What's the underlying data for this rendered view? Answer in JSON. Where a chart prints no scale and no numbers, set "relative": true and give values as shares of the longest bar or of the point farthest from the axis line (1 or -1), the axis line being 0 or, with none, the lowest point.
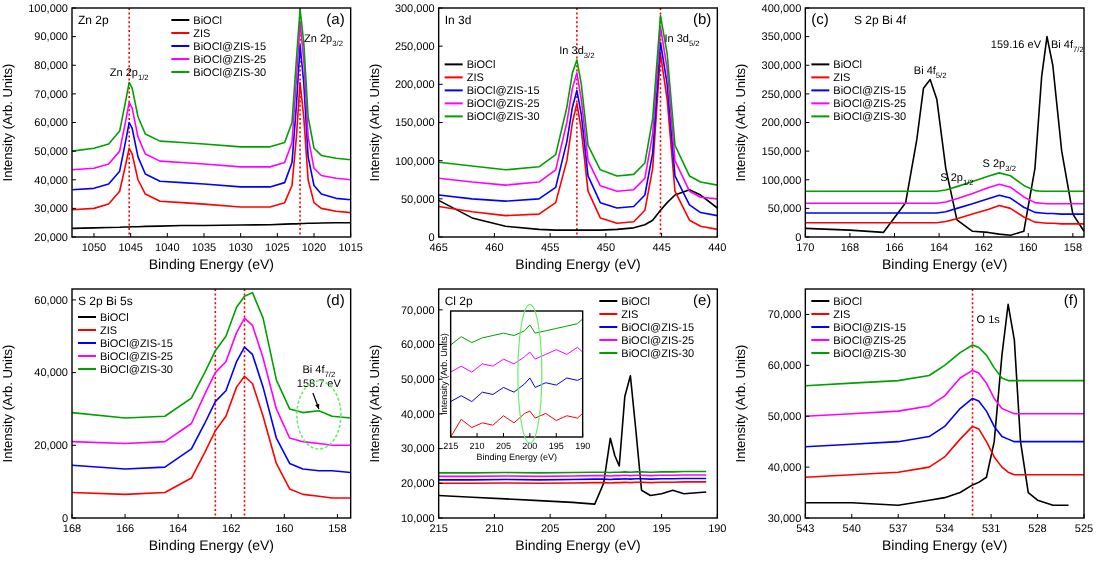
{
  "chart_data": [
    {
      "type": "line",
      "xlabel": "Binding Energy (eV)",
      "ylabel": "Intensity (Arb. Units)",
      "xlim": [
        1053,
        1015
      ],
      "xticks": [
        1050,
        1045,
        1040,
        1035,
        1030,
        1025,
        1020,
        1015
      ],
      "ylim": [
        20000,
        100000
      ],
      "yticks": [
        {
          "value": 20000,
          "label": "20,000"
        },
        {
          "value": 30000,
          "label": "30,000"
        },
        {
          "value": 40000,
          "label": "40,000"
        },
        {
          "value": 50000,
          "label": "50,000"
        },
        {
          "value": 60000,
          "label": "60,000"
        },
        {
          "value": 70000,
          "label": "70,000"
        },
        {
          "value": 80000,
          "label": "80,000"
        },
        {
          "value": 90000,
          "label": "90,000"
        },
        {
          "value": 100000,
          "label": "100,000"
        }
      ],
      "legend": "top",
      "x": [
        1053,
        1050,
        1048,
        1046.5,
        1045.8,
        1045.2,
        1044.8,
        1044,
        1043,
        1041,
        1038,
        1035,
        1030,
        1026,
        1024,
        1023,
        1022.4,
        1021.9,
        1021.4,
        1020.8,
        1020,
        1019,
        1017,
        1015
      ],
      "series": [
        {
          "name": "BiOCl",
          "color": "#000000",
          "values": [
            23000,
            23200,
            23300,
            23400,
            23500,
            23500,
            23600,
            23600,
            23700,
            23800,
            24000,
            24000,
            24200,
            24300,
            24500,
            24600,
            24600,
            24700,
            24700,
            24800,
            24800,
            24900,
            25000,
            25000
          ]
        },
        {
          "name": "ZIS",
          "color": "#ff0000",
          "values": [
            29500,
            30000,
            31500,
            36000,
            44000,
            51000,
            49000,
            40000,
            35000,
            32500,
            32000,
            31500,
            30500,
            30500,
            32000,
            38000,
            55000,
            74000,
            62000,
            40000,
            32000,
            30000,
            29000,
            28500
          ]
        },
        {
          "name": "BiOCl@ZIS-15",
          "color": "#0000ff",
          "values": [
            36500,
            37000,
            38500,
            43000,
            52000,
            60000,
            58000,
            48000,
            42000,
            39500,
            39000,
            38500,
            37500,
            37500,
            39000,
            46000,
            66000,
            87000,
            74000,
            48000,
            38000,
            35000,
            33500,
            33000
          ]
        },
        {
          "name": "BiOCl@ZIS-25",
          "color": "#ff00ff",
          "values": [
            43500,
            44000,
            45500,
            50000,
            59000,
            67000,
            65000,
            55000,
            49000,
            46500,
            46000,
            45500,
            44500,
            44500,
            46000,
            53000,
            75000,
            95000,
            82000,
            55000,
            44000,
            41500,
            40500,
            40000
          ]
        },
        {
          "name": "BiOCl@ZIS-30",
          "color": "#00a000",
          "values": [
            50000,
            51000,
            52500,
            57000,
            66000,
            74000,
            72000,
            62000,
            56000,
            53500,
            53000,
            52500,
            51500,
            51500,
            53000,
            60000,
            82000,
            99500,
            88000,
            62000,
            51000,
            48500,
            47500,
            47000
          ]
        }
      ],
      "ref_lines": [
        {
          "axis": "x",
          "value": 1045.2,
          "color": "#ff0000",
          "line_style": "dotted"
        },
        {
          "axis": "x",
          "value": 1021.9,
          "color": "#ff0000",
          "line_style": "dotted"
        }
      ],
      "annotations": [
        "Zn 2p",
        "(a)",
        {
          "text": "Zn 2p$_{1/2}$",
          "x": 1045.2,
          "y": 74000
        },
        {
          "text": "Zn 2p$_{3/2}$",
          "x": 1021.9,
          "y": 99500
        }
      ]
    },
    {
      "type": "line",
      "xlabel": "Binding Energy (eV)",
      "ylabel": "Intensity (Arb. Units)",
      "xlim": [
        465,
        440
      ],
      "xticks": [
        465,
        460,
        455,
        450,
        445,
        440
      ],
      "ylim": [
        0,
        300000
      ],
      "yticks": [
        {
          "value": 0,
          "label": "0"
        },
        {
          "value": 50000,
          "label": "50,000"
        },
        {
          "value": 100000,
          "label": "100,000"
        },
        {
          "value": 150000,
          "label": "150,000"
        },
        {
          "value": 200000,
          "label": "200,000"
        },
        {
          "value": 250000,
          "label": "250,000"
        },
        {
          "value": 300000,
          "label": "300,000"
        }
      ],
      "legend": "left",
      "x": [
        465,
        462,
        459,
        456,
        454.5,
        453.5,
        453,
        452.6,
        452.2,
        451.6,
        450.5,
        449,
        447.5,
        446.5,
        445.8,
        445.1,
        444.5,
        443.8,
        442.5,
        441.5,
        440
      ],
      "series": [
        {
          "name": "BiOCl",
          "color": "#000000",
          "values": [
            48000,
            25000,
            14000,
            10000,
            9000,
            9000,
            9000,
            9000,
            9000,
            9000,
            9000,
            10000,
            12000,
            16000,
            22000,
            35000,
            45000,
            55000,
            62000,
            55000,
            38000
          ]
        },
        {
          "name": "ZIS",
          "color": "#ff0000",
          "values": [
            40000,
            33000,
            28000,
            30000,
            45000,
            100000,
            150000,
            175000,
            140000,
            60000,
            25000,
            18000,
            20000,
            35000,
            90000,
            240000,
            180000,
            60000,
            22000,
            14000,
            10000
          ]
        },
        {
          "name": "BiOCl@ZIS-15",
          "color": "#0000ff",
          "values": [
            55000,
            50000,
            47000,
            50000,
            65000,
            125000,
            170000,
            192000,
            160000,
            80000,
            45000,
            38000,
            40000,
            55000,
            110000,
            255000,
            200000,
            80000,
            42000,
            32000,
            28000
          ]
        },
        {
          "name": "BiOCl@ZIS-25",
          "color": "#ff00ff",
          "values": [
            77000,
            72000,
            68000,
            72000,
            88000,
            150000,
            195000,
            215000,
            180000,
            100000,
            67000,
            60000,
            62000,
            77000,
            135000,
            275000,
            220000,
            100000,
            60000,
            52000,
            50000
          ]
        },
        {
          "name": "BiOCl@ZIS-30",
          "color": "#00a000",
          "values": [
            98000,
            93000,
            88000,
            92000,
            108000,
            170000,
            215000,
            232000,
            200000,
            120000,
            88000,
            80000,
            82000,
            97000,
            155000,
            290000,
            240000,
            120000,
            80000,
            72000,
            68000
          ]
        }
      ],
      "ref_lines": [
        {
          "axis": "x",
          "value": 452.6,
          "color": "#ff0000",
          "line_style": "dotted"
        },
        {
          "axis": "x",
          "value": 445.1,
          "color": "#ff0000",
          "line_style": "dotted"
        }
      ],
      "annotations": [
        "In 3d",
        "(b)",
        {
          "text": "In 3d$_{3/2}$",
          "x": 452.6,
          "y": 232000
        },
        {
          "text": "In 3d$_{5/2}$",
          "x": 445.1,
          "y": 290000
        }
      ]
    },
    {
      "type": "line",
      "xlabel": "Binding Energy (eV)",
      "ylabel": "Intensity (Arb. Units)",
      "xlim": [
        170,
        157.5
      ],
      "xticks": [
        170,
        168,
        166,
        164,
        162,
        160,
        158
      ],
      "ylim": [
        0,
        400000
      ],
      "yticks": [
        {
          "value": 0,
          "label": "0"
        },
        {
          "value": 50000,
          "label": "50,000"
        },
        {
          "value": 100000,
          "label": "100,000"
        },
        {
          "value": 150000,
          "label": "150,000"
        },
        {
          "value": 200000,
          "label": "200,000"
        },
        {
          "value": 250000,
          "label": "250,000"
        },
        {
          "value": 300000,
          "label": "300,000"
        },
        {
          "value": 350000,
          "label": "350,000"
        },
        {
          "value": 400000,
          "label": "400,000"
        }
      ],
      "legend": "left",
      "x": [
        170,
        168,
        166.5,
        165.5,
        165,
        164.7,
        164.4,
        164.1,
        163.7,
        163.2,
        162.5,
        161.8,
        161.3,
        160.8,
        160.2,
        159.7,
        159.4,
        159.16,
        158.9,
        158.5,
        158,
        157.5
      ],
      "series": [
        {
          "name": "BiOCl",
          "color": "#000000",
          "values": [
            15000,
            12000,
            8000,
            60000,
            170000,
            260000,
            275000,
            240000,
            120000,
            30000,
            10000,
            8000,
            5000,
            3000,
            10000,
            120000,
            280000,
            350000,
            300000,
            150000,
            40000,
            10000
          ]
        },
        {
          "name": "ZIS",
          "color": "#ff0000",
          "values": [
            25000,
            25000,
            25000,
            25000,
            25000,
            25000,
            25000,
            25000,
            27000,
            32000,
            40000,
            48000,
            55000,
            50000,
            35000,
            26000,
            25000,
            24000,
            24000,
            23000,
            23000,
            23000
          ]
        },
        {
          "name": "BiOCl@ZIS-15",
          "color": "#0000ff",
          "values": [
            42000,
            42000,
            42000,
            42000,
            42000,
            42000,
            42000,
            42000,
            44000,
            50000,
            58000,
            67000,
            73000,
            68000,
            52000,
            43000,
            42000,
            41000,
            41000,
            40000,
            40000,
            40000
          ]
        },
        {
          "name": "BiOCl@ZIS-25",
          "color": "#ff00ff",
          "values": [
            59000,
            59000,
            59000,
            59000,
            59000,
            59000,
            59000,
            59000,
            61000,
            67000,
            76000,
            86000,
            92000,
            87000,
            70000,
            60000,
            59000,
            58000,
            58000,
            58000,
            58000,
            58000
          ]
        },
        {
          "name": "BiOCl@ZIS-30",
          "color": "#00a000",
          "values": [
            80000,
            80000,
            80000,
            80000,
            80000,
            80000,
            80000,
            80000,
            82000,
            88000,
            97000,
            106000,
            112000,
            107000,
            90000,
            81000,
            80000,
            80000,
            80000,
            80000,
            80000,
            80000
          ]
        }
      ],
      "annotations": [
        "(c)",
        "S 2p  Bi 4f",
        {
          "text": "Bi 4f$_{5/2}$",
          "x": 164.4,
          "y": 275000
        },
        {
          "text": "159.16 eV",
          "x": 159.16,
          "y": 350000
        },
        {
          "text": "Bi 4f$_{7/2}$",
          "x": 159.16,
          "y": 350000
        },
        {
          "text": "S 2p$_{1/2}$",
          "x": 163.2,
          "y": 88000
        },
        {
          "text": "S 2p$_{3/2}$",
          "x": 161.3,
          "y": 112000
        }
      ]
    },
    {
      "type": "line",
      "xlabel": "Binding Energy (eV)",
      "ylabel": "Intensity (Arb. Units)",
      "xlim": [
        168,
        157.5
      ],
      "xticks": [
        168,
        166,
        164,
        162,
        160,
        158
      ],
      "ylim": [
        0,
        63000
      ],
      "yticks": [
        {
          "value": 0,
          "label": "0"
        },
        {
          "value": 20000,
          "label": "20,000"
        },
        {
          "value": 40000,
          "label": "40,000"
        },
        {
          "value": 60000,
          "label": "60,000"
        }
      ],
      "legend": "top left",
      "x": [
        168,
        166,
        164.5,
        163.5,
        163,
        162.6,
        162.2,
        161.8,
        161.5,
        161.2,
        160.8,
        160.3,
        159.8,
        159.3,
        158.7,
        158.2,
        157.5
      ],
      "series": [
        {
          "name": "BiOCl",
          "color": "#000000",
          "values": [
            null,
            null,
            null,
            null,
            null,
            null,
            null,
            null,
            null,
            null,
            null,
            null,
            null,
            null,
            null,
            null,
            null
          ]
        },
        {
          "name": "ZIS",
          "color": "#ff0000",
          "values": [
            7000,
            6500,
            7000,
            11000,
            18000,
            24000,
            28000,
            36000,
            39000,
            37000,
            28000,
            15000,
            8000,
            6500,
            6000,
            5500,
            5500
          ]
        },
        {
          "name": "BiOCl@ZIS-15",
          "color": "#0000ff",
          "values": [
            14500,
            13500,
            14000,
            19000,
            26000,
            32000,
            35000,
            43000,
            47000,
            45000,
            36000,
            22000,
            15000,
            13500,
            13000,
            13000,
            12500
          ]
        },
        {
          "name": "BiOCl@ZIS-25",
          "color": "#ff00ff",
          "values": [
            21000,
            20500,
            21000,
            26000,
            34000,
            40000,
            43000,
            51000,
            55000,
            53000,
            44000,
            30000,
            22000,
            21000,
            20500,
            20000,
            20000
          ]
        },
        {
          "name": "BiOCl@ZIS-30",
          "color": "#00a000",
          "values": [
            29000,
            27500,
            28000,
            33000,
            40000,
            46000,
            50000,
            58000,
            61000,
            62000,
            55000,
            38000,
            30000,
            29000,
            29500,
            28000,
            27500
          ]
        }
      ],
      "ref_lines": [
        {
          "axis": "x",
          "value": 162.6,
          "color": "#ff0000",
          "line_style": "dotted"
        },
        {
          "axis": "x",
          "value": 161.5,
          "color": "#ff0000",
          "line_style": "dotted"
        }
      ],
      "annotations": [
        "S 2p Bi 5s",
        "(d)",
        {
          "text": "Bi 4f$_{7/2}$",
          "x": 158.7,
          "y": 29500
        },
        {
          "text": "158.7 eV",
          "x": 158.7,
          "y": 29500
        }
      ]
    },
    {
      "type": "line",
      "xlabel": "Binding Energy (eV)",
      "ylabel": "Intensity (Arb. Units)",
      "xlim": [
        215,
        190
      ],
      "xticks": [
        215,
        210,
        205,
        200,
        195,
        190
      ],
      "ylim": [
        10000,
        76000
      ],
      "yticks": [
        {
          "value": 10000,
          "label": "10,000"
        },
        {
          "value": 20000,
          "label": "20,000"
        },
        {
          "value": 30000,
          "label": "30,000"
        },
        {
          "value": 40000,
          "label": "40,000"
        },
        {
          "value": 50000,
          "label": "50,000"
        },
        {
          "value": 60000,
          "label": "60,000"
        },
        {
          "value": 70000,
          "label": "70,000"
        }
      ],
      "legend": "top right",
      "x": [
        215,
        212,
        209,
        206,
        203,
        201,
        200.2,
        199.6,
        199.2,
        198.8,
        198.3,
        197.8,
        197.3,
        196.8,
        196,
        195,
        194,
        193,
        191
      ],
      "series": [
        {
          "name": "BiOCl",
          "color": "#000000",
          "values": [
            16500,
            16000,
            15500,
            15000,
            14500,
            14000,
            20000,
            33000,
            28000,
            25000,
            45000,
            51000,
            35000,
            18000,
            16500,
            17000,
            18000,
            17000,
            17500
          ]
        },
        {
          "name": "ZIS",
          "color": "#ff0000",
          "values": [
            20000,
            20000,
            20100,
            20000,
            20100,
            20200,
            20200,
            20100,
            20200,
            20200,
            20300,
            20200,
            20300,
            20300,
            20200,
            20300,
            20300,
            20400,
            20400
          ]
        },
        {
          "name": "BiOCl@ZIS-15",
          "color": "#0000ff",
          "values": [
            21000,
            21000,
            21100,
            21000,
            21100,
            21200,
            21200,
            21100,
            21200,
            21200,
            21300,
            21200,
            21300,
            21300,
            21200,
            21300,
            21300,
            21400,
            21400
          ]
        },
        {
          "name": "BiOCl@ZIS-25",
          "color": "#ff00ff",
          "values": [
            22000,
            22000,
            22100,
            22000,
            22100,
            22200,
            22200,
            22100,
            22200,
            22200,
            22300,
            22200,
            22300,
            22300,
            22200,
            22300,
            22300,
            22400,
            22400
          ]
        },
        {
          "name": "BiOCl@ZIS-30",
          "color": "#00a000",
          "values": [
            23000,
            23000,
            23100,
            23000,
            23100,
            23200,
            23200,
            23100,
            23200,
            23200,
            23300,
            23200,
            23300,
            23300,
            23200,
            23300,
            23300,
            23400,
            23400
          ]
        }
      ],
      "annotations": [
        "Cl 2p",
        "(e)"
      ]
    },
    {
      "type": "line",
      "xlabel": "Binding Energy (eV)",
      "ylabel": "Intensity (Arb. Units)",
      "xlim": [
        543,
        525
      ],
      "xticks": [
        543,
        540,
        537,
        534,
        531,
        528,
        525
      ],
      "ylim": [
        30000,
        75000
      ],
      "yticks": [
        {
          "value": 30000,
          "label": "30,000"
        },
        {
          "value": 40000,
          "label": "40,000"
        },
        {
          "value": 50000,
          "label": "50,000"
        },
        {
          "value": 60000,
          "label": "60,000"
        },
        {
          "value": 70000,
          "label": "70,000"
        }
      ],
      "legend": "top left",
      "x": [
        543,
        540,
        537,
        535,
        534,
        533,
        532.2,
        531.8,
        531.3,
        530.8,
        530.3,
        529.9,
        529.5,
        529.1,
        528.6,
        528,
        527,
        526,
        525
      ],
      "series": [
        {
          "name": "BiOCl",
          "color": "#000000",
          "values": [
            33000,
            33000,
            32500,
            33500,
            34000,
            35000,
            36500,
            37000,
            38000,
            45000,
            62000,
            72000,
            65000,
            45000,
            35000,
            33500,
            32500,
            32500,
            null
          ]
        },
        {
          "name": "ZIS",
          "color": "#ff0000",
          "values": [
            38000,
            38500,
            39000,
            40000,
            42000,
            45500,
            48000,
            47500,
            45000,
            42000,
            40000,
            39000,
            38500,
            38500,
            38500,
            38500,
            38500,
            38500,
            38500
          ]
        },
        {
          "name": "BiOCl@ZIS-15",
          "color": "#0000ff",
          "values": [
            44000,
            44500,
            45000,
            46000,
            48000,
            51500,
            53500,
            53000,
            51000,
            48000,
            46000,
            45500,
            45000,
            45000,
            45000,
            45000,
            45000,
            45000,
            45000
          ]
        },
        {
          "name": "BiOCl@ZIS-25",
          "color": "#ff00ff",
          "values": [
            50000,
            50500,
            51000,
            52000,
            54000,
            57500,
            59000,
            58500,
            56500,
            53500,
            51500,
            51000,
            50500,
            50500,
            50500,
            50500,
            50500,
            50500,
            50500
          ]
        },
        {
          "name": "BiOCl@ZIS-30",
          "color": "#00a000",
          "values": [
            56000,
            56500,
            57000,
            58000,
            60000,
            62500,
            64000,
            63500,
            62000,
            59500,
            57500,
            57000,
            57000,
            57000,
            57000,
            57000,
            57000,
            57000,
            57000
          ]
        }
      ],
      "ref_lines": [
        {
          "axis": "x",
          "value": 532.2,
          "color": "#ff0000",
          "line_style": "dotted"
        }
      ],
      "annotations": [
        "(f)",
        {
          "text": "O 1s",
          "x": 532.2,
          "y": 71500
        }
      ]
    },
    {
      "type": "line",
      "xlabel": "Binding Energy (eV)",
      "ylabel": "Intensity (Arb. Units)",
      "relative": true,
      "tick_labels": "x",
      "xlim": [
        215,
        190
      ],
      "xticks": [
        215,
        210,
        205,
        200,
        195,
        190
      ],
      "x": [
        215,
        213,
        211,
        209,
        207,
        205,
        203,
        201,
        200,
        199,
        197,
        195,
        193,
        191,
        190
      ],
      "series": [
        {
          "color": "#ff0000",
          "values": [
            0,
            0.15,
            0.08,
            0.12,
            0.1,
            0.18,
            0.12,
            0.2,
            0.22,
            0.16,
            0.2,
            0.14,
            0.18,
            0.16,
            0.2
          ]
        },
        {
          "color": "#0000ff",
          "values": [
            0.3,
            0.35,
            0.3,
            0.38,
            0.36,
            0.42,
            0.38,
            0.45,
            0.5,
            0.42,
            0.46,
            0.44,
            0.5,
            0.48,
            0.5
          ]
        },
        {
          "color": "#ff00ff",
          "values": [
            0.55,
            0.6,
            0.55,
            0.62,
            0.6,
            0.66,
            0.62,
            0.68,
            0.72,
            0.66,
            0.7,
            0.74,
            0.7,
            0.76,
            0.72
          ]
        },
        {
          "color": "#00a000",
          "values": [
            0.78,
            0.85,
            0.8,
            0.84,
            0.86,
            0.88,
            0.86,
            0.9,
            0.95,
            0.88,
            0.9,
            0.92,
            0.94,
            0.96,
            1
          ]
        }
      ]
    }
  ]
}
